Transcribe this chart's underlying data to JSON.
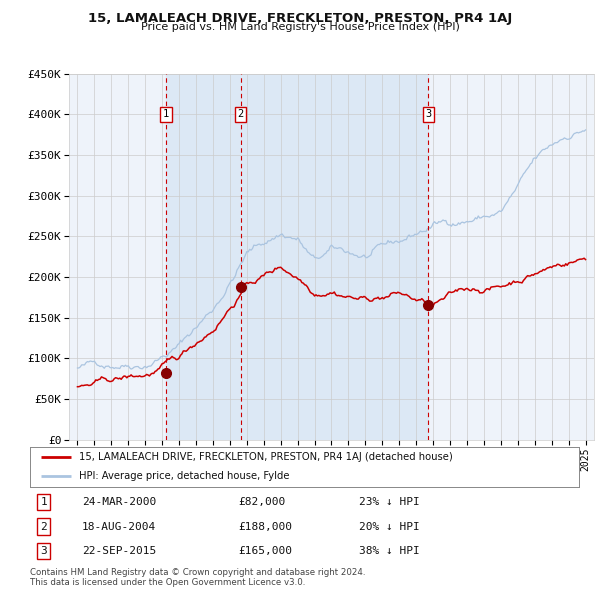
{
  "title": "15, LAMALEACH DRIVE, FRECKLETON, PRESTON, PR4 1AJ",
  "subtitle": "Price paid vs. HM Land Registry's House Price Index (HPI)",
  "legend_line1": "15, LAMALEACH DRIVE, FRECKLETON, PRESTON, PR4 1AJ (detached house)",
  "legend_line2": "HPI: Average price, detached house, Fylde",
  "table_rows": [
    [
      "1",
      "24-MAR-2000",
      "£82,000",
      "23% ↓ HPI"
    ],
    [
      "2",
      "18-AUG-2004",
      "£188,000",
      "20% ↓ HPI"
    ],
    [
      "3",
      "22-SEP-2015",
      "£165,000",
      "38% ↓ HPI"
    ]
  ],
  "footer": "Contains HM Land Registry data © Crown copyright and database right 2024.\nThis data is licensed under the Open Government Licence v3.0.",
  "hpi_color": "#aac4e0",
  "price_color": "#cc0000",
  "sale_marker_color": "#880000",
  "vline_color": "#cc0000",
  "bg_shaded_color": "#ddeeff",
  "ylim": [
    0,
    450000
  ],
  "yticks": [
    0,
    50000,
    100000,
    150000,
    200000,
    250000,
    300000,
    350000,
    400000,
    450000
  ],
  "xlim_start": 1994.5,
  "xlim_end": 2025.5,
  "grid_color": "#cccccc",
  "background_color": "#ffffff",
  "plot_bg_color": "#eef3fa",
  "sale_labels": [
    "1",
    "2",
    "3"
  ],
  "vline_years": [
    2000.22,
    2004.63,
    2015.72
  ],
  "sale_prices": [
    82000,
    188000,
    165000
  ]
}
